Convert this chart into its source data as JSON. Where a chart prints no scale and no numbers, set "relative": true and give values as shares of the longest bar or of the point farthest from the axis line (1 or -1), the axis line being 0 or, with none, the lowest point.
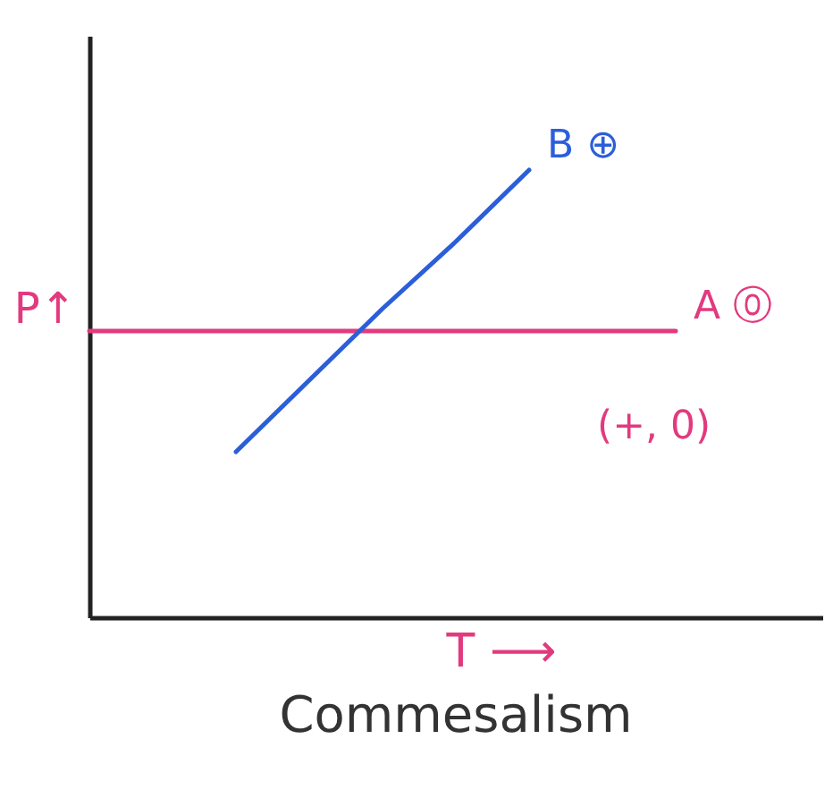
{
  "chart_data": {
    "type": "line",
    "title": "Commesalism",
    "xlabel": "T ⟶",
    "ylabel": "P↑",
    "relative": true,
    "categories": [
      null,
      null,
      null,
      null,
      null,
      null,
      null,
      null,
      null,
      null,
      null
    ],
    "series": [
      {
        "name": "A ⓪",
        "color": "#e23a7e",
        "values": [
          0.64,
          0.64,
          0.64,
          0.64,
          0.64,
          0.64,
          0.64,
          0.64,
          0.64,
          null,
          null
        ]
      },
      {
        "name": "B ⊕",
        "color": "#2b5fd9",
        "values": [
          null,
          null,
          0.37,
          0.53,
          0.69,
          0.84,
          1.0,
          null,
          null,
          null,
          null
        ]
      }
    ],
    "annotations": [
      "(+, 0)"
    ]
  }
}
